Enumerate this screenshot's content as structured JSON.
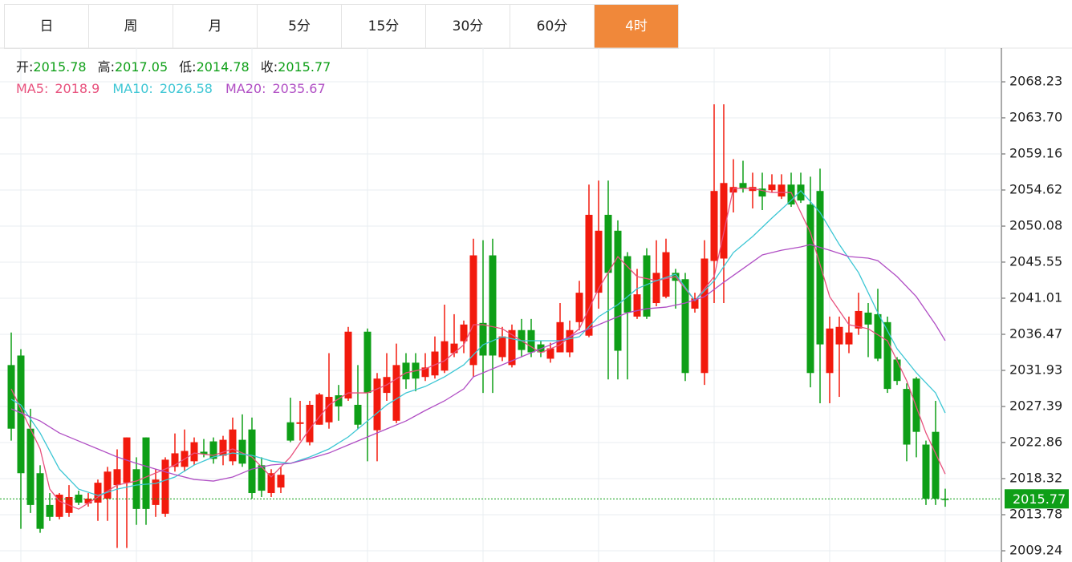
{
  "tabs": [
    "日",
    "周",
    "月",
    "5分",
    "15分",
    "30分",
    "60分",
    "4时"
  ],
  "active_tab": 7,
  "chart_data": {
    "type": "candlestick",
    "info_labels": [
      "开:",
      "高:",
      "低:",
      "收:"
    ],
    "up_color": "#f21a0d",
    "down_color": "#0e9f17",
    "open": [
      2032.6,
      2033.8,
      2024.6,
      2019.0,
      2015.0,
      2013.5,
      2014.0,
      2016.3,
      2015.2,
      2015.3,
      2015.8,
      2017.5,
      2017.8,
      2019.5,
      2023.5,
      2015.0,
      2013.9,
      2019.8,
      2019.8,
      2020.5,
      2021.7,
      2023.0,
      2021.2,
      2020.5,
      2023.2,
      2024.5,
      2020.0,
      2016.5,
      2017.2,
      2025.4,
      2025.2,
      2022.9,
      2025.1,
      2025.4,
      2028.8,
      2028.4,
      2027.6,
      2036.8,
      2024.4,
      2029.1,
      2025.6,
      2032.9,
      2032.9,
      2031.1,
      2031.3,
      2031.9,
      2034.1,
      2035.6,
      2032.6,
      2037.9,
      2046.4,
      2033.6,
      2032.6,
      2037.0,
      2037.0,
      2035.2,
      2033.4,
      2034.2,
      2034.2,
      2038.0,
      2036.3,
      2041.7,
      2051.5,
      2049.5,
      2046.3,
      2038.7,
      2046.4,
      2040.4,
      2041.2,
      2044.2,
      2043.4,
      2039.7,
      2031.6,
      2045.7,
      2046.0,
      2054.3,
      2055.5,
      2054.5,
      2054.8,
      2054.6,
      2053.8,
      2055.3,
      2055.3,
      2052.8,
      2054.5,
      2031.6,
      2035.2,
      2035.2,
      2037.2,
      2039.2,
      2039.0,
      2038.0,
      2033.3,
      2029.6,
      2030.9,
      2022.6,
      2024.2,
      2015.78
    ],
    "high": [
      2036.7,
      2034.6,
      2027.1,
      2020.0,
      2016.5,
      2016.5,
      2017.5,
      2016.8,
      2016.5,
      2018.2,
      2019.8,
      2022.0,
      2023.5,
      2021.0,
      2023.5,
      2019.5,
      2021.0,
      2024.0,
      2024.5,
      2023.5,
      2023.3,
      2023.5,
      2023.7,
      2026.0,
      2026.4,
      2026.0,
      2021.0,
      2019.5,
      2019.8,
      2028.5,
      2028.1,
      2028.1,
      2029.1,
      2034.1,
      2030.1,
      2037.4,
      2032.6,
      2037.2,
      2031.6,
      2034.1,
      2035.3,
      2034.1,
      2034.1,
      2034.1,
      2036.2,
      2040.2,
      2039.0,
      2038.2,
      2048.5,
      2048.3,
      2048.5,
      2037.4,
      2037.7,
      2038.4,
      2038.4,
      2035.7,
      2035.4,
      2040.4,
      2038.2,
      2043.2,
      2055.3,
      2055.8,
      2055.8,
      2050.8,
      2046.8,
      2044.7,
      2047.3,
      2048.3,
      2048.5,
      2044.7,
      2044.2,
      2041.7,
      2048.3,
      2065.4,
      2065.4,
      2058.5,
      2058.3,
      2056.8,
      2056.8,
      2056.6,
      2056.6,
      2056.8,
      2056.8,
      2056.3,
      2057.3,
      2038.7,
      2038.7,
      2038.7,
      2041.7,
      2040.4,
      2042.2,
      2038.7,
      2033.6,
      2030.3,
      2031.1,
      2023.1,
      2028.1,
      2017.05
    ],
    "low": [
      2023.1,
      2012.0,
      2014.0,
      2011.5,
      2013.0,
      2013.2,
      2013.5,
      2015.0,
      2014.8,
      2013.0,
      2013.0,
      2009.6,
      2009.6,
      2012.5,
      2012.5,
      2013.5,
      2013.5,
      2019.2,
      2019.2,
      2020.0,
      2021.0,
      2020.2,
      2020.0,
      2020.0,
      2019.8,
      2015.8,
      2016.0,
      2016.0,
      2016.5,
      2022.9,
      2023.1,
      2022.5,
      2025.1,
      2024.6,
      2025.6,
      2028.1,
      2024.6,
      2020.5,
      2020.5,
      2028.1,
      2025.3,
      2029.6,
      2029.3,
      2030.6,
      2030.9,
      2031.6,
      2033.6,
      2034.1,
      2031.1,
      2029.1,
      2029.1,
      2033.1,
      2032.3,
      2033.6,
      2033.6,
      2033.6,
      2032.9,
      2034.2,
      2033.6,
      2037.0,
      2036.1,
      2039.7,
      2030.8,
      2030.8,
      2030.8,
      2038.4,
      2038.4,
      2040.0,
      2041.0,
      2039.7,
      2030.6,
      2039.2,
      2030.1,
      2040.4,
      2040.4,
      2051.8,
      2054.3,
      2052.3,
      2052.1,
      2054.3,
      2053.5,
      2052.5,
      2053.0,
      2029.8,
      2027.8,
      2027.8,
      2028.6,
      2034.1,
      2036.4,
      2033.6,
      2033.1,
      2029.1,
      2030.1,
      2020.5,
      2021.0,
      2015.0,
      2015.0,
      2014.78
    ],
    "close": [
      2024.6,
      2019.0,
      2015.0,
      2012.0,
      2013.5,
      2016.3,
      2016.0,
      2015.3,
      2015.8,
      2017.8,
      2019.2,
      2019.5,
      2023.5,
      2014.5,
      2014.5,
      2018.2,
      2020.7,
      2021.5,
      2021.8,
      2022.9,
      2021.4,
      2020.8,
      2023.2,
      2024.5,
      2020.2,
      2016.5,
      2016.8,
      2019.0,
      2018.8,
      2023.1,
      2025.4,
      2027.6,
      2028.9,
      2028.6,
      2027.4,
      2036.8,
      2025.1,
      2029.1,
      2030.9,
      2031.1,
      2032.6,
      2030.8,
      2030.9,
      2032.3,
      2034.3,
      2035.6,
      2035.3,
      2037.7,
      2046.4,
      2033.8,
      2033.8,
      2036.2,
      2037.0,
      2034.5,
      2034.2,
      2034.2,
      2034.7,
      2038.0,
      2037.0,
      2041.7,
      2051.5,
      2049.5,
      2044.2,
      2034.4,
      2039.2,
      2041.5,
      2038.7,
      2044.2,
      2046.8,
      2043.2,
      2031.6,
      2041.0,
      2046.0,
      2054.5,
      2055.5,
      2055.0,
      2054.8,
      2055.0,
      2053.8,
      2055.3,
      2055.3,
      2052.8,
      2053.3,
      2031.6,
      2035.2,
      2037.2,
      2037.4,
      2036.7,
      2039.4,
      2037.7,
      2033.4,
      2029.6,
      2030.6,
      2022.6,
      2024.2,
      2015.8,
      2015.8,
      2015.77
    ],
    "series": [
      {
        "name": "MA5",
        "color": "#e8517d",
        "x": [
          0,
          1,
          3,
          4,
          5,
          7,
          9,
          11,
          13,
          15,
          17,
          19,
          21,
          23,
          25,
          27,
          29,
          31,
          33,
          35,
          37,
          39,
          41,
          43,
          45,
          47,
          48,
          49,
          51,
          53,
          55,
          57,
          59,
          61,
          63,
          65,
          67,
          69,
          71,
          73,
          75,
          77,
          79,
          81,
          83,
          85,
          87,
          89,
          91,
          93,
          95,
          97
        ],
        "values": [
          2029.61,
          2027.09,
          2022.05,
          2017.0,
          2015.49,
          2014.48,
          2015.99,
          2017.51,
          2018.01,
          2019.02,
          2020.03,
          2021.54,
          2021.24,
          2022.05,
          2021.04,
          2018.52,
          2021.04,
          2024.57,
          2027.59,
          2029.1,
          2029.1,
          2030.11,
          2031.63,
          2032.13,
          2033.14,
          2035.15,
          2037.68,
          2037.68,
          2037.17,
          2035.66,
          2034.15,
          2035.15,
          2037.17,
          2042.21,
          2046.25,
          2043.73,
          2043.22,
          2043.73,
          2040.7,
          2043.73,
          2054.82,
          2054.82,
          2054.31,
          2054.31,
          2049.27,
          2041.2,
          2037.68,
          2037.17,
          2035.66,
          2030.62,
          2024.06,
          2018.9
        ]
      },
      {
        "name": "MA10",
        "color": "#3cc6d4",
        "x": [
          0,
          1,
          3,
          5,
          7,
          9,
          11,
          13,
          15,
          17,
          19,
          21,
          23,
          25,
          27,
          29,
          31,
          33,
          35,
          37,
          39,
          41,
          43,
          45,
          47,
          49,
          51,
          53,
          55,
          57,
          59,
          61,
          63,
          65,
          67,
          69,
          71,
          73,
          75,
          77,
          79,
          81,
          82,
          84,
          86,
          88,
          90,
          92,
          94,
          96,
          97
        ],
        "values": [
          2028.3,
          2027.59,
          2024.06,
          2019.52,
          2017.0,
          2016.2,
          2017.0,
          2017.51,
          2017.71,
          2018.52,
          2020.03,
          2021.04,
          2021.54,
          2021.24,
          2020.53,
          2020.23,
          2021.04,
          2022.05,
          2023.56,
          2025.57,
          2027.59,
          2029.1,
          2029.91,
          2031.12,
          2032.63,
          2035.15,
          2036.16,
          2035.66,
          2035.66,
          2035.66,
          2036.16,
          2038.68,
          2040.2,
          2042.21,
          2043.22,
          2044.03,
          2040.7,
          2043.22,
          2046.75,
          2048.77,
          2051.09,
          2053.31,
          2054.52,
          2051.79,
          2047.76,
          2044.23,
          2039.19,
          2034.65,
          2031.63,
          2029.1,
          2026.58
        ]
      },
      {
        "name": "MA20",
        "color": "#b04ec4",
        "x": [
          0,
          3,
          5,
          7,
          9,
          11,
          13,
          15,
          17,
          19,
          21,
          23,
          25,
          27,
          29,
          31,
          33,
          35,
          37,
          39,
          41,
          43,
          45,
          47,
          48,
          50,
          52,
          54,
          56,
          58,
          60,
          62,
          64,
          66,
          68,
          70,
          72,
          74,
          76,
          78,
          80,
          82,
          83,
          85,
          87,
          89,
          90,
          92,
          94,
          96,
          97
        ],
        "values": [
          2027.09,
          2025.57,
          2024.06,
          2023.05,
          2022.05,
          2021.04,
          2020.23,
          2019.52,
          2018.82,
          2018.21,
          2018.01,
          2018.52,
          2019.52,
          2020.03,
          2020.23,
          2020.84,
          2021.54,
          2022.55,
          2023.56,
          2024.57,
          2025.57,
          2026.89,
          2028.1,
          2029.61,
          2031.12,
          2032.13,
          2033.14,
          2034.15,
          2035.15,
          2036.16,
          2037.17,
          2038.18,
          2039.19,
          2039.69,
          2039.89,
          2040.4,
          2041.2,
          2043.02,
          2044.73,
          2046.45,
          2047.05,
          2047.46,
          2047.76,
          2047.05,
          2046.25,
          2046.05,
          2045.74,
          2043.73,
          2041.2,
          2037.68,
          2035.67
        ]
      }
    ],
    "ylim": [
      2007.83,
      2072.47
    ],
    "yticks": [
      2068.23,
      {
        "value": 2063.7,
        "label": "2063.70"
      },
      2059.16,
      2054.62,
      2050.08,
      2045.55,
      2041.01,
      2036.47,
      2031.93,
      2027.39,
      2022.86,
      2018.32,
      2013.78,
      2009.24
    ],
    "grid": true
  }
}
